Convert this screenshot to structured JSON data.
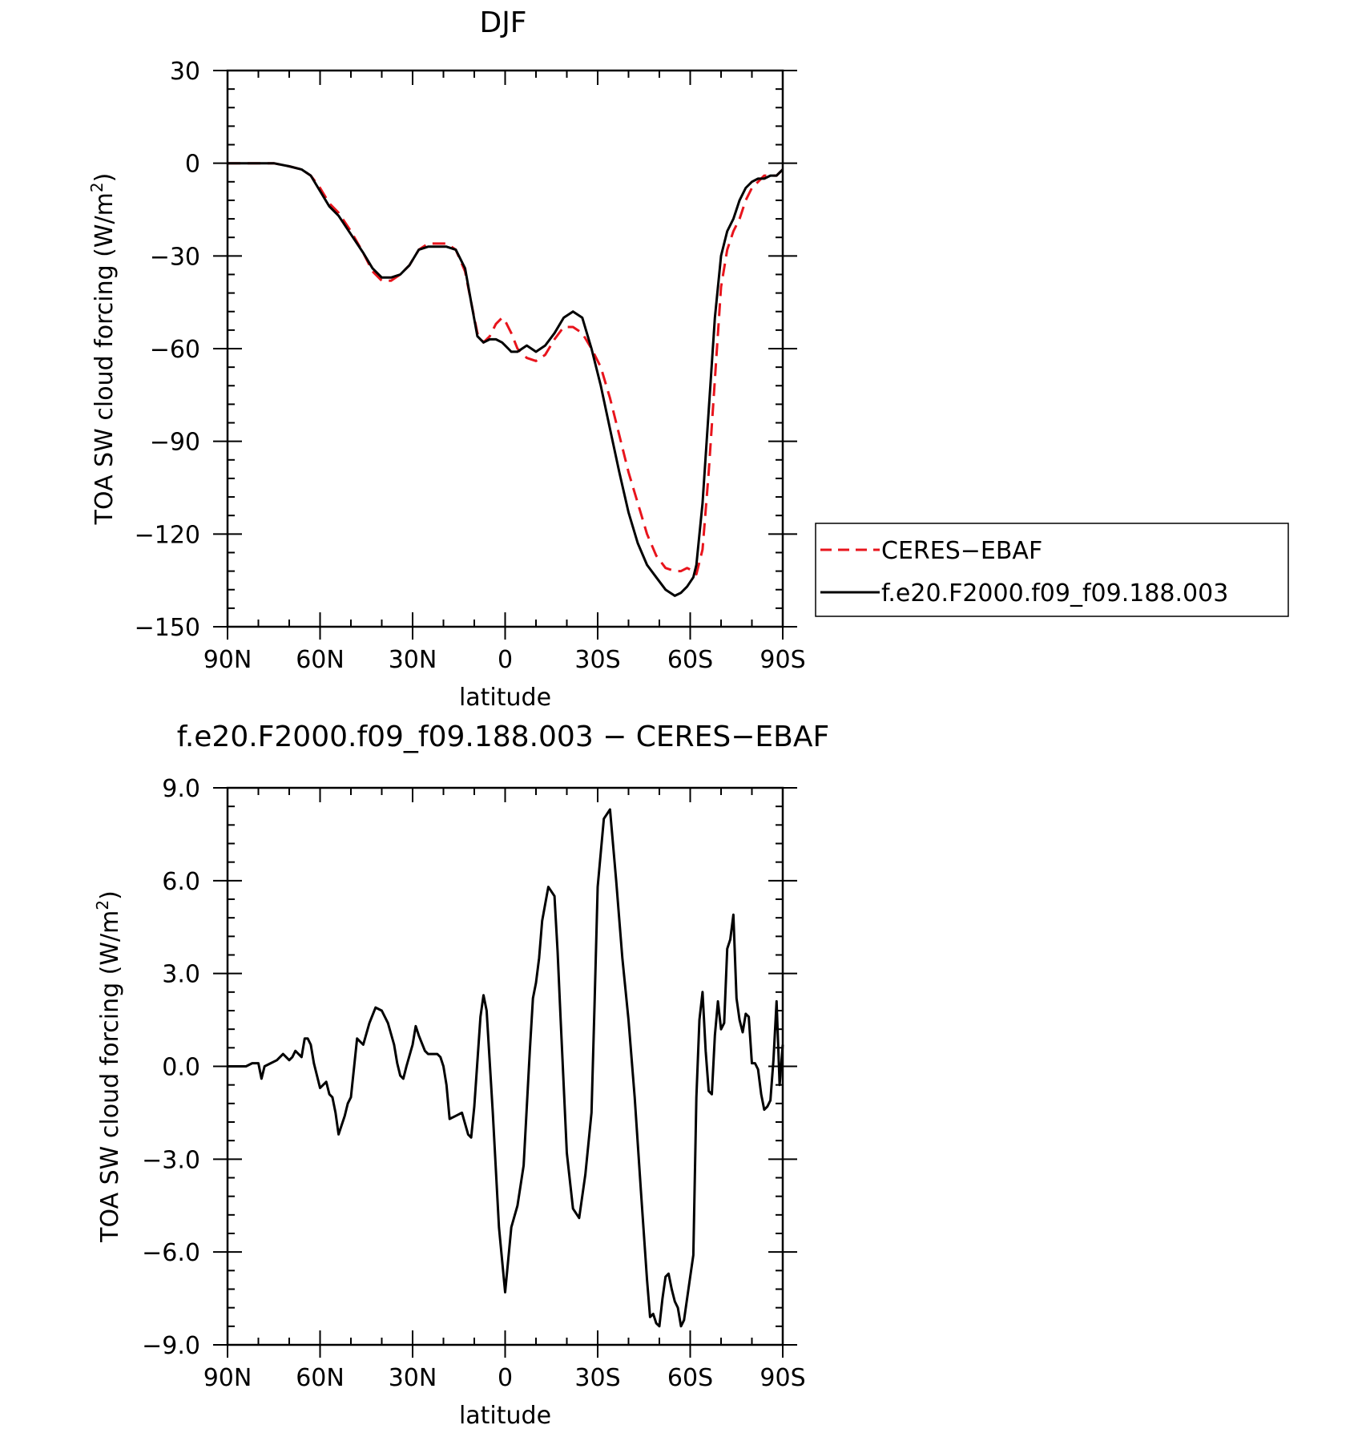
{
  "chart_data": [
    {
      "type": "line",
      "title": "DJF",
      "xlabel": "latitude",
      "ylabel": "TOA SW cloud forcing (W/m",
      "ylabel_sup": "2",
      "ylabel_close": ")",
      "xlim": [
        90,
        -90
      ],
      "ylim": [
        -150,
        30
      ],
      "x_ticks": [
        90,
        60,
        30,
        0,
        -30,
        -60,
        -90
      ],
      "x_tick_labels": [
        "90N",
        "60N",
        "30N",
        "0",
        "30S",
        "60S",
        "90S"
      ],
      "y_ticks": [
        30,
        0,
        -30,
        -60,
        -90,
        -120,
        -150
      ],
      "y_tick_labels": [
        "30",
        "0",
        "−30",
        "−60",
        "−90",
        "−120",
        "−150"
      ],
      "legend": {
        "position": "right",
        "entries": [
          "CERES−EBAF",
          "f.e20.F2000.f09_f09.188.003"
        ]
      },
      "series": [
        {
          "name": "CERES−EBAF",
          "color": "#e8141c",
          "dash": true,
          "x": [
            90,
            85,
            80,
            75,
            70,
            66,
            63,
            60,
            57,
            54,
            50,
            46,
            43,
            40,
            37,
            34,
            31,
            28,
            25,
            22,
            19,
            16,
            13,
            11,
            9,
            7,
            5,
            3,
            1,
            0,
            -2,
            -4,
            -7,
            -10,
            -13,
            -16,
            -19,
            -22,
            -25,
            -28,
            -31,
            -34,
            -37,
            -40,
            -43,
            -46,
            -49,
            -52,
            -55,
            -57,
            -59,
            -61,
            -62,
            -64,
            -66,
            -68,
            -70,
            -72,
            -74,
            -76,
            -78,
            -80,
            -82,
            -84,
            -86,
            -88,
            -90
          ],
          "y": [
            0,
            0,
            0,
            0,
            -1,
            -2,
            -4,
            -8,
            -13,
            -16,
            -22,
            -29,
            -35,
            -38,
            -38,
            -36,
            -33,
            -28,
            -26,
            -26,
            -26,
            -28,
            -35,
            -45,
            -55,
            -58,
            -56,
            -52,
            -50,
            -51,
            -55,
            -60,
            -63,
            -64,
            -62,
            -57,
            -53,
            -53,
            -55,
            -60,
            -66,
            -76,
            -88,
            -100,
            -110,
            -120,
            -127,
            -131,
            -132,
            -132,
            -131,
            -132,
            -133,
            -125,
            -100,
            -70,
            -40,
            -28,
            -22,
            -18,
            -12,
            -8,
            -6,
            -4,
            -4,
            -4,
            -2
          ]
        },
        {
          "name": "f.e20.F2000.f09_f09.188.003",
          "color": "#000000",
          "dash": false,
          "x": [
            90,
            85,
            80,
            75,
            70,
            66,
            63,
            60,
            57,
            54,
            50,
            46,
            43,
            40,
            37,
            34,
            31,
            28,
            25,
            22,
            19,
            16,
            13,
            11,
            9,
            7,
            5,
            3,
            1,
            0,
            -2,
            -4,
            -7,
            -10,
            -13,
            -16,
            -19,
            -22,
            -25,
            -28,
            -31,
            -34,
            -37,
            -40,
            -43,
            -46,
            -49,
            -52,
            -55,
            -57,
            -59,
            -61,
            -62,
            -64,
            -66,
            -68,
            -70,
            -72,
            -74,
            -76,
            -78,
            -80,
            -82,
            -84,
            -86,
            -88,
            -90
          ],
          "y": [
            0,
            0,
            0,
            0,
            -1,
            -2,
            -4,
            -9,
            -14,
            -17,
            -23,
            -29,
            -34,
            -37,
            -37,
            -36,
            -33,
            -28,
            -27,
            -27,
            -27,
            -28,
            -34,
            -45,
            -56,
            -58,
            -57,
            -57,
            -58,
            -59,
            -61,
            -61,
            -59,
            -61,
            -59,
            -55,
            -50,
            -48,
            -50,
            -60,
            -72,
            -86,
            -100,
            -113,
            -123,
            -130,
            -134,
            -138,
            -140,
            -139,
            -137,
            -134,
            -130,
            -110,
            -80,
            -50,
            -30,
            -22,
            -18,
            -12,
            -8,
            -6,
            -5,
            -5,
            -4,
            -4,
            -2
          ]
        }
      ]
    },
    {
      "type": "line",
      "title": "f.e20.F2000.f09_f09.188.003 − CERES−EBAF",
      "xlabel": "latitude",
      "ylabel": "TOA SW cloud forcing (W/m",
      "ylabel_sup": "2",
      "ylabel_close": ")",
      "xlim": [
        90,
        -90
      ],
      "ylim": [
        -9,
        9
      ],
      "x_ticks": [
        90,
        60,
        30,
        0,
        -30,
        -60,
        -90
      ],
      "x_tick_labels": [
        "90N",
        "60N",
        "30N",
        "0",
        "30S",
        "60S",
        "90S"
      ],
      "y_ticks": [
        9,
        6,
        3,
        0,
        -3,
        -6,
        -9
      ],
      "y_tick_labels": [
        "9.0",
        "6.0",
        "3.0",
        "0.0",
        "−3.0",
        "−6.0",
        "−9.0"
      ],
      "series": [
        {
          "color": "#000000",
          "dash": false,
          "x": [
            90,
            88,
            86,
            84,
            82,
            80,
            79,
            78,
            76,
            74,
            72,
            70,
            69,
            68,
            66,
            65,
            64,
            63,
            62,
            60,
            58,
            57,
            56,
            55,
            54,
            52,
            51,
            50,
            48,
            46,
            44,
            42,
            40,
            38,
            36,
            35,
            34,
            33,
            32,
            30,
            29,
            28,
            26,
            25,
            24,
            22,
            21,
            20,
            19,
            18,
            16,
            14,
            12,
            11,
            10,
            8,
            7,
            6,
            4,
            2,
            0,
            -2,
            -4,
            -6,
            -8,
            -9,
            -10,
            -11,
            -12,
            -14,
            -16,
            -17,
            -18,
            -20,
            -22,
            -24,
            -26,
            -28,
            -29,
            -30,
            -32,
            -34,
            -36,
            -38,
            -40,
            -42,
            -44,
            -46,
            -47,
            -48,
            -49,
            -50,
            -51,
            -52,
            -53,
            -54,
            -55,
            -56,
            -57,
            -58,
            -60,
            -61,
            -62,
            -63,
            -64,
            -65,
            -66,
            -67,
            -68,
            -69,
            -70,
            -71,
            -72,
            -73,
            -74,
            -75,
            -76,
            -77,
            -78,
            -79,
            -80,
            -81,
            -82,
            -83,
            -84,
            -85,
            -86,
            -87,
            -88,
            -89,
            -90
          ],
          "y": [
            0,
            0,
            0,
            0,
            0.1,
            0.1,
            -0.4,
            0,
            0.1,
            0.2,
            0.4,
            0.2,
            0.3,
            0.5,
            0.3,
            0.9,
            0.9,
            0.7,
            0.1,
            -0.7,
            -0.5,
            -0.9,
            -1.0,
            -1.5,
            -2.2,
            -1.6,
            -1.2,
            -1.0,
            0.9,
            0.7,
            1.4,
            1.9,
            1.8,
            1.4,
            0.7,
            0.1,
            -0.3,
            -0.4,
            0.0,
            0.7,
            1.3,
            1.0,
            0.5,
            0.4,
            0.4,
            0.4,
            0.3,
            0,
            -0.6,
            -1.7,
            -1.6,
            -1.5,
            -2.2,
            -2.3,
            -1.3,
            1.6,
            2.3,
            1.8,
            -1.5,
            -5.2,
            -7.3,
            -5.2,
            -4.5,
            -3.2,
            0.5,
            2.2,
            2.7,
            3.5,
            4.7,
            5.8,
            5.5,
            3.7,
            1.5,
            -2.8,
            -4.6,
            -4.9,
            -3.5,
            -1.5,
            2.0,
            5.8,
            8.0,
            8.3,
            6.0,
            3.5,
            1.5,
            -1.0,
            -4.0,
            -6.9,
            -8.1,
            -8.0,
            -8.3,
            -8.4,
            -7.5,
            -6.8,
            -6.7,
            -7.2,
            -7.6,
            -7.8,
            -8.4,
            -8.2,
            -6.8,
            -6.1,
            -1.0,
            1.5,
            2.4,
            0.5,
            -0.8,
            -0.9,
            1.0,
            2.1,
            1.2,
            1.4,
            3.8,
            4.1,
            4.9,
            2.2,
            1.5,
            1.1,
            1.7,
            1.6,
            0.1,
            0.1,
            -0.1,
            -0.9,
            -1.4,
            -1.3,
            -1.1,
            0.2,
            2.1,
            -0.6,
            0.7
          ]
        }
      ]
    }
  ]
}
